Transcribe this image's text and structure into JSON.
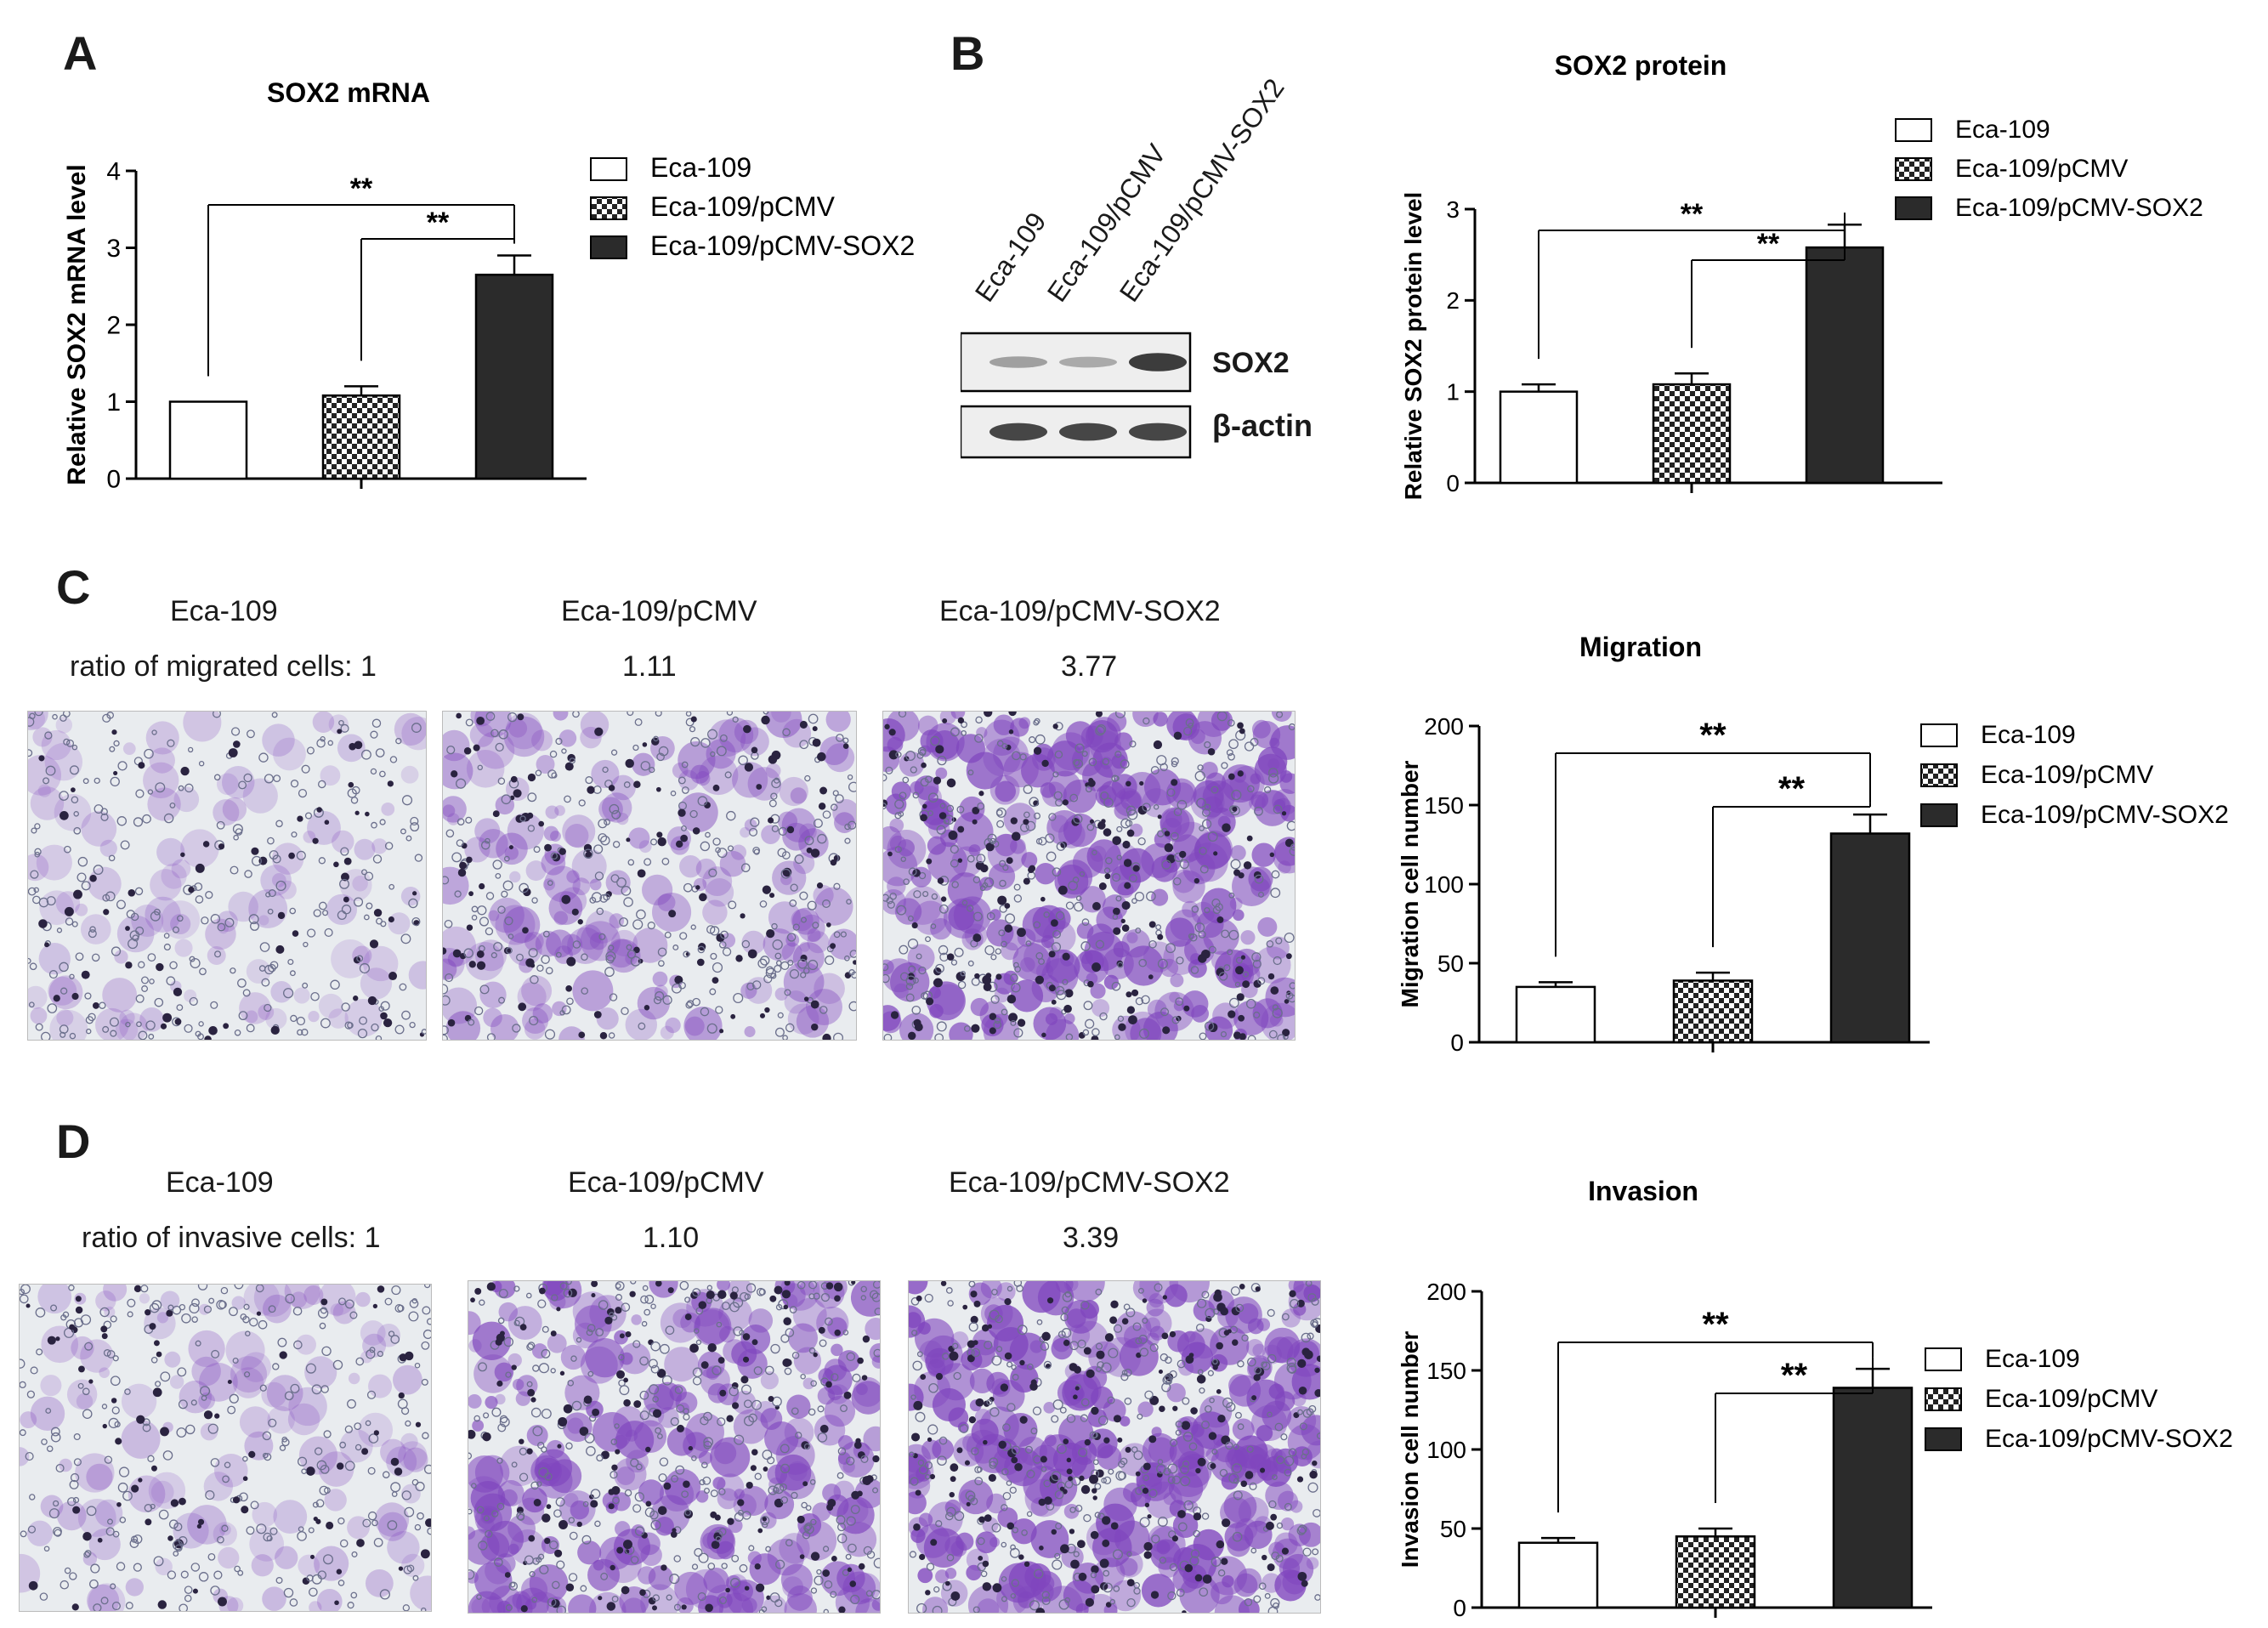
{
  "panels": {
    "A": "A",
    "B": "B",
    "C": "C",
    "D": "D"
  },
  "groups": [
    "Eca-109",
    "Eca-109/pCMV",
    "Eca-109/pCMV-SOX2"
  ],
  "significance": "**",
  "blot": {
    "lanes": [
      "Eca-109",
      "Eca-109/pCMV",
      "Eca-109/pCMV-SOX2"
    ],
    "bands": [
      {
        "name": "SOX2",
        "intensity": [
          0.35,
          0.3,
          0.85
        ]
      },
      {
        "name": "β-actin",
        "intensity": [
          0.8,
          0.8,
          0.8
        ]
      }
    ]
  },
  "migration_images": {
    "labels": [
      "Eca-109",
      "Eca-109/pCMV",
      "Eca-109/pCMV-SOX2"
    ],
    "ratio_label": "ratio of migrated cells: 1",
    "ratios": [
      "1.11",
      "3.77"
    ]
  },
  "invasion_images": {
    "labels": [
      "Eca-109",
      "Eca-109/pCMV",
      "Eca-109/pCMV-SOX2"
    ],
    "ratio_label": "ratio of invasive cells: 1",
    "ratios": [
      "1.10",
      "3.39"
    ]
  },
  "colors": {
    "group1": "#ffffff",
    "group2": "checker",
    "group3": "#2b2b2b"
  },
  "chart_data": [
    {
      "type": "bar",
      "title": "SOX2 mRNA",
      "ylabel": "Relative SOX2 mRNA level",
      "xlabel": "",
      "categories": [
        "Eca-109",
        "Eca-109/pCMV",
        "Eca-109/pCMV-SOX2"
      ],
      "values": [
        1.0,
        1.08,
        2.65
      ],
      "errors": [
        0,
        0.12,
        0.25
      ],
      "ylim": [
        0,
        4
      ],
      "yticks": [
        0,
        1,
        2,
        3,
        4
      ],
      "significance": [
        {
          "from": 0,
          "to": 2,
          "label": "**"
        },
        {
          "from": 1,
          "to": 2,
          "label": "**"
        }
      ],
      "legend": "right"
    },
    {
      "type": "bar",
      "title": "SOX2 protein",
      "ylabel": "Relative SOX2 protein level",
      "xlabel": "",
      "categories": [
        "Eca-109",
        "Eca-109/pCMV",
        "Eca-109/pCMV-SOX2"
      ],
      "values": [
        1.0,
        1.08,
        2.58
      ],
      "errors": [
        0.08,
        0.12,
        0.25
      ],
      "ylim": [
        0,
        3
      ],
      "yticks": [
        0,
        1,
        2,
        3
      ],
      "significance": [
        {
          "from": 0,
          "to": 2,
          "label": "**"
        },
        {
          "from": 1,
          "to": 2,
          "label": "**"
        }
      ],
      "legend": "top-right"
    },
    {
      "type": "bar",
      "title": "Migration",
      "ylabel": "Migration cell number",
      "xlabel": "",
      "categories": [
        "Eca-109",
        "Eca-109/pCMV",
        "Eca-109/pCMV-SOX2"
      ],
      "values": [
        35,
        39,
        132
      ],
      "errors": [
        3,
        5,
        12
      ],
      "ylim": [
        0,
        200
      ],
      "yticks": [
        0,
        50,
        100,
        150,
        200
      ],
      "significance": [
        {
          "from": 0,
          "to": 2,
          "label": "**"
        },
        {
          "from": 1,
          "to": 2,
          "label": "**"
        }
      ],
      "legend": "right"
    },
    {
      "type": "bar",
      "title": "Invasion",
      "ylabel": "Invasion cell number",
      "xlabel": "",
      "categories": [
        "Eca-109",
        "Eca-109/pCMV",
        "Eca-109/pCMV-SOX2"
      ],
      "values": [
        41,
        45,
        139
      ],
      "errors": [
        3,
        5,
        12
      ],
      "ylim": [
        0,
        200
      ],
      "yticks": [
        0,
        50,
        100,
        150,
        200
      ],
      "significance": [
        {
          "from": 0,
          "to": 2,
          "label": "**"
        },
        {
          "from": 1,
          "to": 2,
          "label": "**"
        }
      ],
      "legend": "right"
    }
  ]
}
